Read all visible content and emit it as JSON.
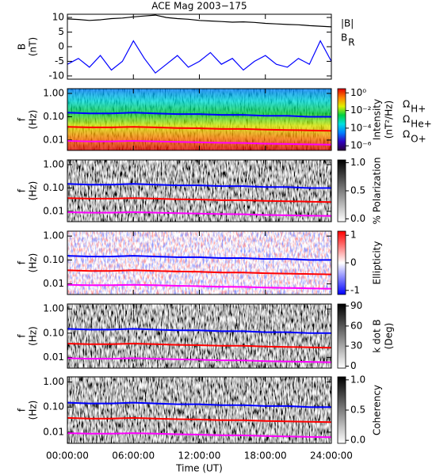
{
  "chart_data": [
    {
      "type": "line",
      "title": "ACE Mag 2003−175",
      "ylabel": [
        "B",
        "(nT)"
      ],
      "xlim": [
        0,
        24
      ],
      "ylim": [
        -11.1,
        11.1
      ],
      "yticks": [
        -10,
        -5,
        0,
        5,
        10
      ],
      "x": [
        0,
        1,
        2,
        3,
        4,
        5,
        6,
        7,
        8,
        9,
        10,
        11,
        12,
        13,
        14,
        15,
        16,
        17,
        18,
        19,
        20,
        21,
        22,
        23,
        24
      ],
      "series": [
        {
          "name": "|B|",
          "color": "#000000",
          "values": [
            9.5,
            9.3,
            9.0,
            9.2,
            9.6,
            9.8,
            10.2,
            10.5,
            10.8,
            10.0,
            9.6,
            9.4,
            9.0,
            8.8,
            8.6,
            8.4,
            8.5,
            8.3,
            8.0,
            7.8,
            7.6,
            7.5,
            7.2,
            7.0,
            6.8
          ]
        },
        {
          "name": "B",
          "subscript": "R",
          "color": "#0000ff",
          "values": [
            -6,
            -4,
            -7,
            -3,
            -8,
            -5,
            2,
            -4,
            -9,
            -6,
            -3,
            -7,
            -5,
            -2,
            -6,
            -4,
            -8,
            -5,
            -3,
            -6,
            -7,
            -4,
            -6,
            2,
            -5
          ]
        }
      ]
    },
    {
      "type": "spectrogram",
      "ylabel": [
        "f",
        "(Hz)"
      ],
      "log_y": true,
      "xlim": [
        0,
        24
      ],
      "ylim": [
        0.0036,
        1.6
      ],
      "yticks": [
        {
          "value": 1,
          "label": "1.00"
        },
        {
          "value": 0.1,
          "label": "0.10"
        },
        {
          "value": 0.01,
          "label": "0.01"
        }
      ],
      "x": [
        0,
        2,
        4,
        6,
        8,
        10,
        12,
        14,
        16,
        18,
        20,
        22,
        24
      ],
      "series": [
        {
          "name": "Ω",
          "subscript": "H+",
          "color": "#0000ff",
          "values": [
            0.15,
            0.14,
            0.14,
            0.15,
            0.14,
            0.13,
            0.13,
            0.12,
            0.12,
            0.11,
            0.11,
            0.1,
            0.1
          ]
        },
        {
          "name": "Ω",
          "subscript": "He+",
          "color": "#ff0000",
          "values": [
            0.037,
            0.035,
            0.035,
            0.037,
            0.035,
            0.033,
            0.032,
            0.03,
            0.03,
            0.028,
            0.027,
            0.026,
            0.025
          ]
        },
        {
          "name": "Ω",
          "subscript": "O+",
          "color": "#ff00ff",
          "values": [
            0.0092,
            0.0088,
            0.0088,
            0.0092,
            0.0088,
            0.0083,
            0.008,
            0.0076,
            0.0075,
            0.007,
            0.0068,
            0.0065,
            0.0063
          ]
        }
      ],
      "colorbar": {
        "label": [
          "Intensity",
          "(nT²/Hz)"
        ],
        "log": true,
        "zlim": [
          3e-07,
          3
        ],
        "zticks": [
          {
            "value": 1,
            "label": "10⁰"
          },
          {
            "value": 0.01,
            "label": "10⁻²"
          },
          {
            "value": 0.0001,
            "label": "10⁻⁴"
          },
          {
            "value": 1e-06,
            "label": "10⁻⁶"
          }
        ],
        "colormap": [
          "#2a003a",
          "#3000c0",
          "#0080ff",
          "#00e0e0",
          "#00d040",
          "#e0f000",
          "#ff8000",
          "#e00000"
        ]
      }
    },
    {
      "type": "spectrogram",
      "ylabel": [
        "f",
        "(Hz)"
      ],
      "log_y": true,
      "xlim": [
        0,
        24
      ],
      "ylim": [
        0.0036,
        1.6
      ],
      "yticks": [
        {
          "value": 1,
          "label": "1.00"
        },
        {
          "value": 0.1,
          "label": "0.10"
        },
        {
          "value": 0.01,
          "label": "0.01"
        }
      ],
      "x": [
        0,
        2,
        4,
        6,
        8,
        10,
        12,
        14,
        16,
        18,
        20,
        22,
        24
      ],
      "series": [
        {
          "color": "#0000ff",
          "values": [
            0.15,
            0.14,
            0.14,
            0.15,
            0.14,
            0.13,
            0.13,
            0.12,
            0.12,
            0.11,
            0.11,
            0.1,
            0.1
          ]
        },
        {
          "color": "#ff0000",
          "values": [
            0.037,
            0.035,
            0.035,
            0.037,
            0.035,
            0.033,
            0.032,
            0.03,
            0.03,
            0.028,
            0.027,
            0.026,
            0.025
          ]
        },
        {
          "color": "#ff00ff",
          "values": [
            0.0092,
            0.0088,
            0.0088,
            0.0092,
            0.0088,
            0.0083,
            0.008,
            0.0076,
            0.0075,
            0.007,
            0.0068,
            0.0065,
            0.0063
          ]
        }
      ],
      "colorbar": {
        "label": [
          "% Polarization"
        ],
        "zlim": [
          -0.05,
          1.05
        ],
        "zticks": [
          {
            "value": 1,
            "label": "1.0"
          },
          {
            "value": 0.5,
            "label": "0.5"
          },
          {
            "value": 0,
            "label": "0.0"
          }
        ],
        "colormap": [
          "#ffffff",
          "#000000"
        ]
      }
    },
    {
      "type": "spectrogram",
      "ylabel": [
        "f",
        "(Hz)"
      ],
      "log_y": true,
      "xlim": [
        0,
        24
      ],
      "ylim": [
        0.0036,
        1.6
      ],
      "yticks": [
        {
          "value": 1,
          "label": "1.00"
        },
        {
          "value": 0.1,
          "label": "0.10"
        },
        {
          "value": 0.01,
          "label": "0.01"
        }
      ],
      "x": [
        0,
        2,
        4,
        6,
        8,
        10,
        12,
        14,
        16,
        18,
        20,
        22,
        24
      ],
      "series": [
        {
          "color": "#0000ff",
          "values": [
            0.15,
            0.14,
            0.14,
            0.15,
            0.14,
            0.13,
            0.13,
            0.12,
            0.12,
            0.11,
            0.11,
            0.1,
            0.1
          ]
        },
        {
          "color": "#ff0000",
          "values": [
            0.037,
            0.035,
            0.035,
            0.037,
            0.035,
            0.033,
            0.032,
            0.03,
            0.03,
            0.028,
            0.027,
            0.026,
            0.025
          ]
        },
        {
          "color": "#ff00ff",
          "values": [
            0.0092,
            0.0088,
            0.0088,
            0.0092,
            0.0088,
            0.0083,
            0.008,
            0.0076,
            0.0075,
            0.007,
            0.0068,
            0.0065,
            0.0063
          ]
        }
      ],
      "colorbar": {
        "label": [
          "Ellipticity"
        ],
        "zlim": [
          -1.15,
          1.15
        ],
        "zticks": [
          1,
          0,
          -1
        ],
        "colormap": [
          "#0000ff",
          "#ffffff",
          "#ff0000"
        ]
      }
    },
    {
      "type": "spectrogram",
      "ylabel": [
        "f",
        "(Hz)"
      ],
      "log_y": true,
      "xlim": [
        0,
        24
      ],
      "ylim": [
        0.0036,
        1.6
      ],
      "yticks": [
        {
          "value": 1,
          "label": "1.00"
        },
        {
          "value": 0.1,
          "label": "0.10"
        },
        {
          "value": 0.01,
          "label": "0.01"
        }
      ],
      "x": [
        0,
        2,
        4,
        6,
        8,
        10,
        12,
        14,
        16,
        18,
        20,
        22,
        24
      ],
      "series": [
        {
          "color": "#0000ff",
          "values": [
            0.15,
            0.14,
            0.14,
            0.15,
            0.14,
            0.13,
            0.13,
            0.12,
            0.12,
            0.11,
            0.11,
            0.1,
            0.1
          ]
        },
        {
          "color": "#ff0000",
          "values": [
            0.037,
            0.035,
            0.035,
            0.037,
            0.035,
            0.033,
            0.032,
            0.03,
            0.03,
            0.028,
            0.027,
            0.026,
            0.025
          ]
        },
        {
          "color": "#ff00ff",
          "values": [
            0.0092,
            0.0088,
            0.0088,
            0.0092,
            0.0088,
            0.0083,
            0.008,
            0.0076,
            0.0075,
            0.007,
            0.0068,
            0.0065,
            0.0063
          ]
        }
      ],
      "colorbar": {
        "label": [
          "k dot B",
          "(Deg)"
        ],
        "zlim": [
          -3,
          93
        ],
        "zticks": [
          90,
          60,
          30,
          0
        ],
        "colormap": [
          "#ffffff",
          "#000000"
        ]
      }
    },
    {
      "type": "spectrogram",
      "ylabel": [
        "f",
        "(Hz)"
      ],
      "log_y": true,
      "xlim": [
        0,
        24
      ],
      "ylim": [
        0.0036,
        1.6
      ],
      "yticks": [
        {
          "value": 1,
          "label": "1.00"
        },
        {
          "value": 0.1,
          "label": "0.10"
        },
        {
          "value": 0.01,
          "label": "0.01"
        }
      ],
      "x": [
        0,
        2,
        4,
        6,
        8,
        10,
        12,
        14,
        16,
        18,
        20,
        22,
        24
      ],
      "series": [
        {
          "color": "#0000ff",
          "values": [
            0.15,
            0.14,
            0.14,
            0.15,
            0.14,
            0.13,
            0.13,
            0.12,
            0.12,
            0.11,
            0.11,
            0.1,
            0.1
          ]
        },
        {
          "color": "#ff0000",
          "values": [
            0.037,
            0.035,
            0.035,
            0.037,
            0.035,
            0.033,
            0.032,
            0.03,
            0.03,
            0.028,
            0.027,
            0.026,
            0.025
          ]
        },
        {
          "color": "#ff00ff",
          "values": [
            0.0092,
            0.0088,
            0.0088,
            0.0092,
            0.0088,
            0.0083,
            0.008,
            0.0076,
            0.0075,
            0.007,
            0.0068,
            0.0065,
            0.0063
          ]
        }
      ],
      "colorbar": {
        "label": [
          "Coherency"
        ],
        "zlim": [
          -0.05,
          1.05
        ],
        "zticks": [
          {
            "value": 1,
            "label": "1.0"
          },
          {
            "value": 0.5,
            "label": "0.5"
          },
          {
            "value": 0,
            "label": "0.0"
          }
        ],
        "colormap": [
          "#ffffff",
          "#000000"
        ]
      },
      "xticks": [
        {
          "value": 0,
          "label": "00:00:00"
        },
        {
          "value": 6,
          "label": "06:00:00"
        },
        {
          "value": 12,
          "label": "12:00:00"
        },
        {
          "value": 18,
          "label": "18:00:00"
        },
        {
          "value": 24,
          "label": "24:00:00"
        }
      ],
      "xlabel": "Time (UT)"
    }
  ]
}
